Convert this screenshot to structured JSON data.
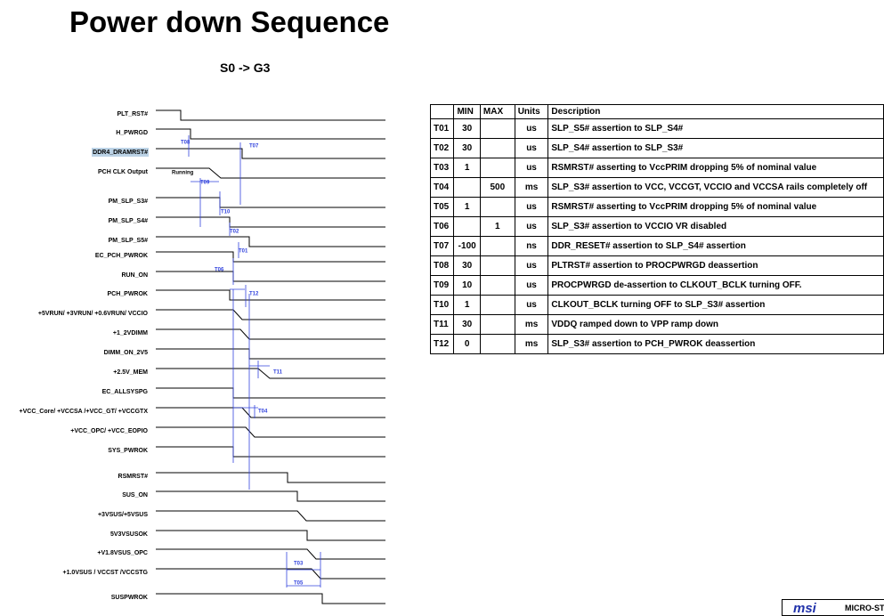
{
  "title": "Power down Sequence",
  "subtitle": "S0 -> G3",
  "signals": [
    "PLT_RST#",
    "H_PWRGD",
    "DDR4_DRAMRST#",
    "PCH CLK Output",
    "PM_SLP_S3#",
    "PM_SLP_S4#",
    "PM_SLP_S5#",
    "EC_PCH_PWROK",
    "RUN_ON",
    "PCH_PWROK",
    "+5VRUN/ +3VRUN/ +0.6VRUN/ VCCIO",
    "+1_2VDIMM",
    "DIMM_ON_2V5",
    "+2.5V_MEM",
    "EC_ALLSYSPG",
    "+VCC_Core/ +VCCSA /+VCC_GT/ +VCCGTX",
    "+VCC_OPC/ +VCC_EOPIO",
    "SYS_PWROK",
    "RSMRST#",
    "SUS_ON",
    "+3VSUS/+5VSUS",
    "5V3VSUSOK",
    "+V1.8VSUS_OPC",
    "+1.0VSUS / VCCST /VCCSTG",
    "SUSPWROK"
  ],
  "timing_labels": [
    "T08",
    "T07",
    "Running",
    "T09",
    "T10",
    "T02",
    "T01",
    "T06",
    "T12",
    "T11",
    "T04",
    "T03",
    "T05"
  ],
  "table": {
    "header": [
      "MIN",
      "MAX",
      "Units",
      "Description"
    ],
    "rows": [
      [
        "T01",
        30,
        null,
        "us",
        "SLP_S5# assertion to SLP_S4#"
      ],
      [
        "T02",
        30,
        null,
        "us",
        "SLP_S4# assertion to SLP_S3#"
      ],
      [
        "T03",
        1,
        null,
        "us",
        "RSMRST# asserting to VccPRIM dropping 5% of nominal value"
      ],
      [
        "T04",
        null,
        500,
        "ms",
        "SLP_S3# assertion to VCC, VCCGT, VCCIO and VCCSA rails completely off"
      ],
      [
        "T05",
        1,
        null,
        "us",
        "RSMRST# asserting to VccPRIM dropping 5% of nominal value"
      ],
      [
        "T06",
        null,
        1,
        "us",
        "SLP_S3# assertion to VCCIO VR disabled"
      ],
      [
        "T07",
        -100,
        null,
        "ns",
        "DDR_RESET# assertion to SLP_S4# assertion"
      ],
      [
        "T08",
        30,
        null,
        "us",
        "PLTRST# assertion to PROCPWRGD deassertion"
      ],
      [
        "T09",
        10,
        null,
        "us",
        "PROCPWRGD de-assertion to CLKOUT_BCLK turning OFF."
      ],
      [
        "T10",
        1,
        null,
        "us",
        "CLKOUT_BCLK turning OFF to SLP_S3# assertion"
      ],
      [
        "T11",
        30,
        null,
        "ms",
        "VDDQ ramped down to VPP ramp down"
      ],
      [
        "T12",
        0,
        null,
        "ms",
        "SLP_S3# assertion to PCH_PWROK deassertion"
      ]
    ]
  },
  "footer": {
    "logo": "msi",
    "brand": "MICRO-ST"
  }
}
